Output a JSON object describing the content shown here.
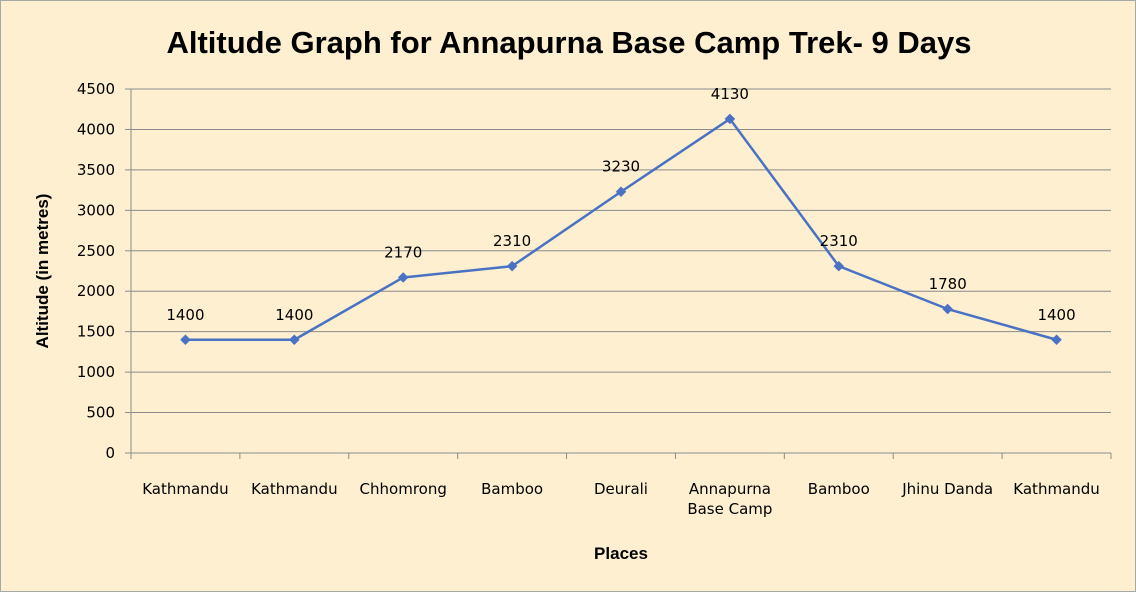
{
  "chart_data": {
    "type": "line",
    "title": "Altitude Graph for Annapurna Base Camp Trek- 9 Days",
    "xlabel": "Places",
    "ylabel": "Altitude (in metres)",
    "categories": [
      "Kathmandu",
      "Kathmandu",
      "Chhomrong",
      "Bamboo",
      "Deurali",
      "Annapurna Base Camp",
      "Bamboo",
      "Jhinu Danda",
      "Kathmandu"
    ],
    "category_lines": [
      [
        "Kathmandu"
      ],
      [
        "Kathmandu"
      ],
      [
        "Chhomrong"
      ],
      [
        "Bamboo"
      ],
      [
        "Deurali"
      ],
      [
        "Annapurna",
        "Base Camp"
      ],
      [
        "Bamboo"
      ],
      [
        "Jhinu Danda"
      ],
      [
        "Kathmandu"
      ]
    ],
    "series": [
      {
        "values": [
          1400,
          1400,
          2170,
          2310,
          3230,
          4130,
          2310,
          1780,
          1400
        ]
      }
    ],
    "yticks": [
      0,
      500,
      1000,
      1500,
      2000,
      2500,
      3000,
      3500,
      4000,
      4500
    ],
    "ylim": [
      0,
      4500
    ],
    "grid": true,
    "legend": "none",
    "data_labels": true,
    "colors": {
      "line": "#4a72c4",
      "marker": "#4a72c4",
      "background": "#fdefd0",
      "grid": "#8c8c8c"
    }
  }
}
